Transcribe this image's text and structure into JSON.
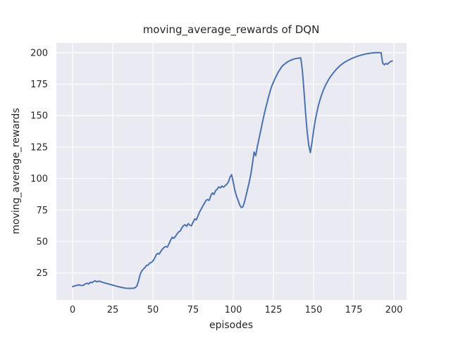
{
  "chart_data": {
    "type": "line",
    "title": "moving_average_rewards of DQN",
    "xlabel": "episodes",
    "ylabel": "moving_average_rewards",
    "x_ticks": [
      0,
      25,
      50,
      75,
      100,
      125,
      150,
      175,
      200
    ],
    "y_ticks": [
      25,
      50,
      75,
      100,
      125,
      150,
      175,
      200
    ],
    "xlim": [
      -10.1,
      207.9
    ],
    "ylim": [
      3.6,
      207.7
    ],
    "grid": true,
    "legend": false,
    "colors": {
      "figure_background": "#ffffff",
      "axes_background": "#eaeaf2",
      "grid": "#ffffff",
      "text": "#262626",
      "line": "#4c72b0"
    },
    "series": [
      {
        "name": "moving_average_rewards",
        "color": "#4c72b0",
        "x_start": 0,
        "x_step": 1,
        "values": [
          14.2,
          14.6,
          15.0,
          15.3,
          15.6,
          15.2,
          15.1,
          15.4,
          16.5,
          16.9,
          16.3,
          17.7,
          17.3,
          18.2,
          18.8,
          18.1,
          18.4,
          18.5,
          17.9,
          17.5,
          17.1,
          16.8,
          16.4,
          16.1,
          15.7,
          15.4,
          15.0,
          14.7,
          14.3,
          14.0,
          13.7,
          13.4,
          13.2,
          13.0,
          12.9,
          12.8,
          12.8,
          12.9,
          13.0,
          13.4,
          14.6,
          18.5,
          23.8,
          26.6,
          28.1,
          29.3,
          31.0,
          31.4,
          32.9,
          33.4,
          34.6,
          36.6,
          39.4,
          40.6,
          40.1,
          42.4,
          44.1,
          45.4,
          46.1,
          45.6,
          48.2,
          51.0,
          53.4,
          52.6,
          54.1,
          56.0,
          57.6,
          58.4,
          60.9,
          62.6,
          63.4,
          62.1,
          64.2,
          63.0,
          62.5,
          65.4,
          68.0,
          67.2,
          70.3,
          73.4,
          75.6,
          78.1,
          80.4,
          82.6,
          83.4,
          82.6,
          86.4,
          88.6,
          87.4,
          90.4,
          91.6,
          93.4,
          92.6,
          94.1,
          93.2,
          94.4,
          95.6,
          97.4,
          101.2,
          103.1,
          97.2,
          90.6,
          86.1,
          82.9,
          79.1,
          77.0,
          77.6,
          81.5,
          86.5,
          92.0,
          97.5,
          104.0,
          112.5,
          121.0,
          118.2,
          125.5,
          131.5,
          137.5,
          143.5,
          149.5,
          155.0,
          160.0,
          165.0,
          169.5,
          173.5,
          176.5,
          179.5,
          182.0,
          184.5,
          186.5,
          188.5,
          190.0,
          191.0,
          192.0,
          192.8,
          193.5,
          194.1,
          194.6,
          195.0,
          195.3,
          195.5,
          195.7,
          195.8,
          186.2,
          170.3,
          152.4,
          137.2,
          126.1,
          120.6,
          128.5,
          138.0,
          146.0,
          152.5,
          158.0,
          162.5,
          166.5,
          170.0,
          173.0,
          175.5,
          177.8,
          180.0,
          181.8,
          183.5,
          185.0,
          186.5,
          187.9,
          189.1,
          190.2,
          191.2,
          192.1,
          192.9,
          193.6,
          194.3,
          194.9,
          195.5,
          196.0,
          196.5,
          197.0,
          197.4,
          197.8,
          198.2,
          198.5,
          198.8,
          199.1,
          199.3,
          199.5,
          199.7,
          199.8,
          199.9,
          200.0,
          200.0,
          200.0,
          200.0,
          191.8,
          190.3,
          191.4,
          190.8,
          192.1,
          193.0,
          193.4
        ]
      }
    ]
  }
}
